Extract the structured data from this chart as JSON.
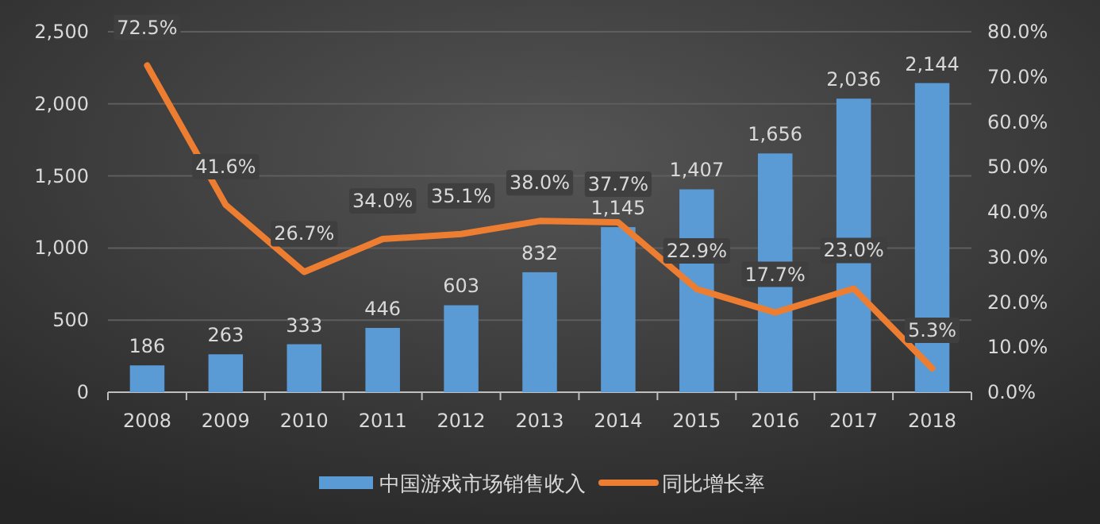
{
  "chart_data": {
    "type": "bar",
    "categories": [
      "2008",
      "2009",
      "2010",
      "2011",
      "2012",
      "2013",
      "2014",
      "2015",
      "2016",
      "2017",
      "2018"
    ],
    "series": [
      {
        "name": "中国游戏市场销售收入",
        "color": "#5b9bd5",
        "values": [
          186,
          263,
          333,
          446,
          603,
          832,
          1145,
          1407,
          1656,
          2036,
          2144
        ],
        "value_labels": [
          "186",
          "263",
          "333",
          "446",
          "603",
          "832",
          "1,145",
          "1,407",
          "1,656",
          "2,036",
          "2,144"
        ]
      },
      {
        "name": "同比增长率",
        "type": "line",
        "axis": "y2",
        "color": "#ed7d31",
        "values": [
          72.5,
          41.6,
          26.7,
          34.0,
          35.1,
          38.0,
          37.7,
          22.9,
          17.7,
          23.0,
          5.3
        ],
        "value_labels": [
          "72.5%",
          "41.6%",
          "26.7%",
          "34.0%",
          "35.1%",
          "38.0%",
          "37.7%",
          "22.9%",
          "17.7%",
          "23.0%",
          "5.3%"
        ]
      }
    ],
    "ylim": [
      0,
      2500
    ],
    "yticks": [
      0,
      {
        "value": 500,
        "label": "500"
      },
      {
        "value": 1000,
        "label": "1,000"
      },
      {
        "value": 1500,
        "label": "1,500"
      },
      {
        "value": 2000,
        "label": "2,000"
      },
      {
        "value": 2500,
        "label": "2,500"
      }
    ],
    "y2lim": [
      0,
      80
    ],
    "y2ticks": [
      {
        "value": 0,
        "label": "0.0%"
      },
      {
        "value": 10,
        "label": "10.0%"
      },
      {
        "value": 20,
        "label": "20.0%"
      },
      {
        "value": 30,
        "label": "30.0%"
      },
      {
        "value": 40,
        "label": "40.0%"
      },
      {
        "value": 50,
        "label": "50.0%"
      },
      {
        "value": 60,
        "label": "60.0%"
      },
      {
        "value": 70,
        "label": "70.0%"
      },
      {
        "value": 80,
        "label": "80.0%"
      }
    ],
    "grid": "y",
    "legend": "bottom",
    "marker": "none",
    "line_style": "solid"
  }
}
